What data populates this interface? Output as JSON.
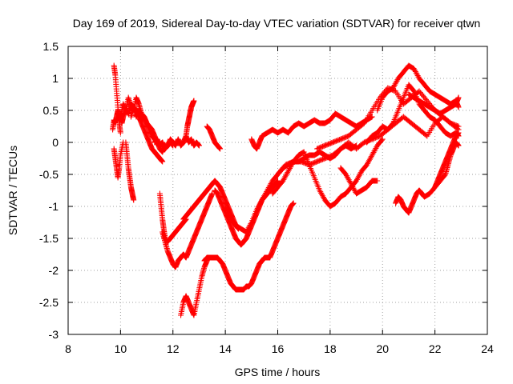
{
  "chart_data": {
    "type": "scatter",
    "title": "Day 169 of 2019, Sidereal Day-to-day VTEC variation (SDTVAR) for receiver qtwn",
    "xlabel": "GPS time / hours",
    "ylabel": "SDTVAR / TECUs",
    "xlim": [
      8,
      24
    ],
    "ylim": [
      -3,
      1.5
    ],
    "xticks": [
      "8",
      "10",
      "12",
      "14",
      "16",
      "18",
      "20",
      "22",
      "24"
    ],
    "yticks": [
      "1.5",
      "1",
      "0.5",
      "0",
      "-0.5",
      "-1",
      "-1.5",
      "-2",
      "-2.5",
      "-3"
    ],
    "grid": true,
    "marker": "plus",
    "color": "#ff0000",
    "series": [
      {
        "x": [
          9.75,
          9.8,
          9.85,
          9.9,
          9.95,
          10.0
        ],
        "y": [
          1.2,
          1.05,
          0.8,
          0.55,
          0.3,
          0.15
        ]
      },
      {
        "x": [
          9.7,
          9.75,
          9.8,
          9.85,
          9.9,
          9.95,
          10.0,
          10.05,
          10.1,
          10.2,
          10.3,
          10.4,
          10.5,
          10.6,
          10.7,
          10.8,
          10.9,
          11.0,
          11.1,
          11.2,
          11.3,
          11.4,
          11.5,
          11.6,
          11.7
        ],
        "y": [
          0.2,
          0.35,
          0.3,
          0.4,
          0.5,
          0.35,
          0.45,
          0.3,
          0.4,
          0.5,
          0.45,
          0.6,
          0.55,
          0.4,
          0.5,
          0.35,
          0.4,
          0.3,
          0.25,
          0.2,
          0.1,
          0.0,
          -0.1,
          -0.15,
          -0.05
        ]
      },
      {
        "x": [
          9.75,
          9.8,
          9.85,
          9.9,
          9.95,
          10.0,
          10.1
        ],
        "y": [
          -0.1,
          -0.25,
          -0.4,
          -0.55,
          -0.4,
          -0.2,
          0.0
        ]
      },
      {
        "x": [
          10.0,
          10.1,
          10.2,
          10.3,
          10.4,
          10.5,
          10.6,
          10.7,
          10.8,
          10.9,
          11.0,
          11.1,
          11.2,
          11.3,
          11.4,
          11.5,
          11.6,
          11.7,
          11.8,
          11.9,
          12.0
        ],
        "y": [
          0.4,
          0.6,
          0.5,
          0.7,
          0.55,
          0.5,
          0.7,
          0.6,
          0.45,
          0.4,
          0.3,
          0.2,
          0.1,
          0.05,
          0.0,
          -0.05,
          0.0,
          -0.1,
          -0.05,
          0.0,
          -0.05
        ]
      },
      {
        "x": [
          10.2,
          10.25,
          10.3,
          10.35,
          10.4,
          10.45,
          10.5
        ],
        "y": [
          0.0,
          -0.2,
          -0.4,
          -0.55,
          -0.7,
          -0.8,
          -0.9
        ]
      },
      {
        "x": [
          10.4,
          10.5,
          10.6,
          10.7,
          10.8,
          10.9,
          11.0,
          11.1,
          11.2,
          11.3,
          11.4,
          11.5,
          11.6
        ],
        "y": [
          0.4,
          0.55,
          0.5,
          0.4,
          0.3,
          0.2,
          0.1,
          0.0,
          -0.1,
          -0.15,
          -0.2,
          -0.25,
          -0.3
        ]
      },
      {
        "x": [
          11.3,
          11.4,
          11.5,
          11.6,
          11.7,
          11.8,
          11.9,
          12.0,
          12.1,
          12.2,
          12.3,
          12.4,
          12.5,
          12.6,
          12.7,
          12.8,
          12.9,
          13.0
        ],
        "y": [
          0.0,
          0.05,
          -0.05,
          0.0,
          -0.1,
          -0.05,
          0.05,
          0.0,
          -0.05,
          0.05,
          -0.05,
          0.0,
          0.1,
          0.0,
          0.05,
          -0.05,
          0.0,
          -0.05
        ]
      },
      {
        "x": [
          12.5,
          12.55,
          12.6,
          12.65,
          12.7,
          12.75,
          12.8
        ],
        "y": [
          0.1,
          0.25,
          0.35,
          0.45,
          0.55,
          0.6,
          0.65
        ]
      },
      {
        "x": [
          13.3,
          13.4,
          13.5,
          13.6,
          13.7,
          13.8
        ],
        "y": [
          0.25,
          0.2,
          0.1,
          0.0,
          -0.05,
          -0.1
        ]
      },
      {
        "x": [
          11.5,
          11.55,
          11.6,
          11.65,
          11.7,
          11.8,
          11.9,
          12.0,
          12.1,
          12.2,
          12.3,
          12.4,
          12.5
        ],
        "y": [
          -0.8,
          -1.0,
          -1.2,
          -1.35,
          -1.5,
          -1.55,
          -1.5,
          -1.45,
          -1.4,
          -1.35,
          -1.3,
          -1.25,
          -1.2
        ]
      },
      {
        "x": [
          11.6,
          11.7,
          11.8,
          11.9,
          12.0,
          12.1,
          12.2,
          12.3,
          12.4,
          12.5,
          12.6,
          12.7,
          12.8,
          12.9,
          13.0,
          13.1,
          13.2,
          13.3,
          13.4,
          13.5
        ],
        "y": [
          -1.4,
          -1.55,
          -1.7,
          -1.8,
          -1.9,
          -1.95,
          -1.85,
          -1.8,
          -1.75,
          -1.8,
          -1.7,
          -1.6,
          -1.5,
          -1.4,
          -1.3,
          -1.2,
          -1.1,
          -1.0,
          -0.9,
          -0.8
        ]
      },
      {
        "x": [
          12.4,
          12.5,
          12.6,
          12.7,
          12.8,
          12.9,
          13.0,
          13.1,
          13.2,
          13.3,
          13.4,
          13.5,
          13.6,
          13.7,
          13.8,
          13.9,
          14.0,
          14.1,
          14.2,
          14.3,
          14.4,
          14.5
        ],
        "y": [
          -1.2,
          -1.15,
          -1.1,
          -1.05,
          -1.0,
          -0.95,
          -0.9,
          -0.85,
          -0.8,
          -0.75,
          -0.7,
          -0.65,
          -0.6,
          -0.65,
          -0.7,
          -0.8,
          -0.9,
          -1.0,
          -1.1,
          -1.2,
          -1.3,
          -1.35
        ]
      },
      {
        "x": [
          12.3,
          12.4,
          12.5,
          12.6,
          12.7,
          12.8,
          12.9,
          13.0,
          13.1,
          13.2,
          13.3
        ],
        "y": [
          -2.7,
          -2.5,
          -2.4,
          -2.5,
          -2.6,
          -2.7,
          -2.5,
          -2.3,
          -2.1,
          -1.95,
          -1.85
        ]
      },
      {
        "x": [
          13.2,
          13.3,
          13.4,
          13.5,
          13.6,
          13.7,
          13.8,
          13.9,
          14.0,
          14.1,
          14.2,
          14.3,
          14.4,
          14.5,
          14.6,
          14.7,
          14.8,
          14.9,
          15.0,
          15.1,
          15.2,
          15.3,
          15.4,
          15.5,
          15.6,
          15.7,
          15.8,
          15.9,
          16.0,
          16.1,
          16.2,
          16.3,
          16.4,
          16.5,
          16.6
        ],
        "y": [
          -1.85,
          -1.8,
          -1.8,
          -1.8,
          -1.8,
          -1.8,
          -1.85,
          -1.9,
          -2.0,
          -2.1,
          -2.2,
          -2.25,
          -2.3,
          -2.3,
          -2.3,
          -2.3,
          -2.25,
          -2.25,
          -2.2,
          -2.1,
          -2.0,
          -1.9,
          -1.85,
          -1.8,
          -1.8,
          -1.8,
          -1.7,
          -1.6,
          -1.5,
          -1.4,
          -1.3,
          -1.2,
          -1.1,
          -1.0,
          -0.95
        ]
      },
      {
        "x": [
          13.6,
          13.7,
          13.8,
          13.9,
          14.0,
          14.1,
          14.2,
          14.3,
          14.4,
          14.5,
          14.6,
          14.7,
          14.8,
          14.9,
          15.0,
          15.1,
          15.2,
          15.3,
          15.4,
          15.5,
          15.6,
          15.7,
          15.8,
          15.9,
          16.0
        ],
        "y": [
          -0.75,
          -0.8,
          -0.9,
          -1.0,
          -1.1,
          -1.2,
          -1.3,
          -1.4,
          -1.5,
          -1.55,
          -1.6,
          -1.55,
          -1.5,
          -1.4,
          -1.3,
          -1.2,
          -1.1,
          -1.0,
          -0.9,
          -0.85,
          -0.8,
          -0.75,
          -0.7,
          -0.65,
          -0.6
        ]
      },
      {
        "x": [
          14.0,
          14.2,
          14.4,
          14.6,
          14.8,
          15.0,
          15.2,
          15.4,
          15.6,
          15.8,
          16.0,
          16.2,
          16.4,
          16.6,
          16.8,
          17.0,
          17.2,
          17.4,
          17.6,
          17.8,
          18.0,
          18.2,
          18.4,
          18.6,
          18.8,
          19.0
        ],
        "y": [
          -1.0,
          -1.2,
          -1.3,
          -1.35,
          -1.4,
          -1.25,
          -1.05,
          -0.9,
          -0.75,
          -0.6,
          -0.5,
          -0.4,
          -0.35,
          -0.3,
          -0.3,
          -0.25,
          -0.2,
          -0.2,
          -0.15,
          -0.2,
          -0.25,
          -0.2,
          -0.1,
          -0.05,
          -0.1,
          -0.05
        ]
      },
      {
        "x": [
          15.0,
          15.1,
          15.2,
          15.3,
          15.4,
          15.6,
          15.8,
          16.0,
          16.2,
          16.4,
          16.6,
          16.8,
          17.0,
          17.2,
          17.4,
          17.6,
          17.8,
          18.0,
          18.2,
          18.4,
          18.6,
          18.8,
          19.0,
          19.2,
          19.4,
          19.6
        ],
        "y": [
          0.05,
          -0.05,
          -0.1,
          0.0,
          0.1,
          0.15,
          0.2,
          0.15,
          0.2,
          0.15,
          0.25,
          0.3,
          0.25,
          0.3,
          0.35,
          0.3,
          0.3,
          0.35,
          0.45,
          0.4,
          0.35,
          0.3,
          0.25,
          0.3,
          0.35,
          0.4
        ]
      },
      {
        "x": [
          15.8,
          16.0,
          16.2,
          16.4,
          16.6,
          16.8,
          17.0,
          17.2,
          17.4,
          17.6,
          17.8,
          18.0,
          18.2,
          18.4,
          18.6,
          18.8,
          19.0,
          19.2,
          19.4,
          19.6,
          19.8,
          20.0
        ],
        "y": [
          -0.8,
          -0.7,
          -0.6,
          -0.45,
          -0.3,
          -0.2,
          -0.15,
          -0.35,
          -0.55,
          -0.75,
          -0.9,
          -1.0,
          -0.95,
          -0.85,
          -0.8,
          -0.7,
          -0.6,
          -0.45,
          -0.35,
          -0.2,
          -0.05,
          0.05
        ]
      },
      {
        "x": [
          16.0,
          16.3,
          16.6,
          16.9,
          17.2,
          17.5,
          17.8,
          18.1,
          18.4,
          18.7,
          19.0,
          19.3,
          19.6,
          19.9,
          20.2,
          20.5,
          20.8,
          21.1,
          21.4,
          21.7,
          22.0,
          22.3,
          22.6,
          22.9
        ],
        "y": [
          -0.5,
          -0.35,
          -0.3,
          -0.3,
          -0.35,
          -0.3,
          -0.25,
          -0.2,
          -0.1,
          0.0,
          -0.1,
          0.0,
          0.05,
          0.1,
          0.2,
          0.3,
          0.4,
          0.3,
          0.2,
          0.1,
          0.3,
          0.4,
          0.3,
          0.2
        ]
      },
      {
        "x": [
          17.5,
          17.8,
          18.1,
          18.4,
          18.7,
          19.0,
          19.3,
          19.6,
          19.9,
          20.2,
          20.5,
          20.8,
          21.1,
          21.4,
          21.7,
          22.0,
          22.3,
          22.6,
          22.9
        ],
        "y": [
          -0.1,
          -0.05,
          0.0,
          0.05,
          0.1,
          0.2,
          0.3,
          0.5,
          0.7,
          0.85,
          0.8,
          0.6,
          0.7,
          0.8,
          0.65,
          0.5,
          0.4,
          0.3,
          0.25
        ]
      },
      {
        "x": [
          18.4,
          18.6,
          18.8,
          19.0,
          19.2,
          19.4,
          19.6,
          19.8
        ],
        "y": [
          -0.4,
          -0.5,
          -0.65,
          -0.8,
          -0.75,
          -0.7,
          -0.6,
          -0.6
        ]
      },
      {
        "x": [
          19.4,
          19.6,
          19.8,
          20.0,
          20.2,
          20.4,
          20.6,
          20.8,
          21.0,
          21.2,
          21.4,
          21.6,
          21.8,
          22.0,
          22.2,
          22.4,
          22.6,
          22.8,
          22.9
        ],
        "y": [
          0.0,
          0.1,
          0.15,
          0.25,
          0.2,
          0.3,
          0.5,
          0.7,
          0.9,
          0.8,
          0.6,
          0.5,
          0.4,
          0.35,
          0.25,
          0.15,
          0.1,
          0.15,
          0.1
        ]
      },
      {
        "x": [
          19.8,
          20.0,
          20.2,
          20.4,
          20.6,
          20.8,
          21.0,
          21.2,
          21.4,
          21.6,
          21.8,
          22.0,
          22.2,
          22.4,
          22.6,
          22.8,
          22.9
        ],
        "y": [
          0.5,
          0.7,
          0.8,
          0.85,
          1.0,
          1.1,
          1.2,
          1.15,
          1.0,
          0.9,
          0.8,
          0.75,
          0.7,
          0.65,
          0.6,
          0.65,
          0.55
        ]
      },
      {
        "x": [
          20.5,
          20.6,
          20.7,
          20.8,
          20.9,
          21.0,
          21.1,
          21.2,
          21.3,
          21.4,
          21.5,
          21.6,
          21.8,
          22.0,
          22.2,
          22.4,
          22.5,
          22.6,
          22.7,
          22.8,
          22.9
        ],
        "y": [
          -0.95,
          -0.85,
          -0.9,
          -1.0,
          -1.05,
          -1.1,
          -1.0,
          -0.9,
          -0.8,
          -0.75,
          -0.8,
          -0.85,
          -0.8,
          -0.7,
          -0.6,
          -0.5,
          -0.35,
          -0.2,
          -0.1,
          0.0,
          -0.05
        ]
      },
      {
        "x": [
          21.0,
          21.2,
          21.4,
          21.6,
          21.8,
          22.0,
          22.2,
          22.4,
          22.6,
          22.8,
          22.9
        ],
        "y": [
          0.75,
          0.7,
          0.65,
          0.6,
          0.55,
          0.5,
          0.45,
          0.5,
          0.55,
          0.6,
          0.7
        ]
      },
      {
        "x": [
          22.0,
          22.1,
          22.2,
          22.3,
          22.4,
          22.5,
          22.6,
          22.7,
          22.8,
          22.9
        ],
        "y": [
          -0.7,
          -0.6,
          -0.5,
          -0.4,
          -0.3,
          -0.2,
          -0.1,
          0.0,
          0.1,
          0.15
        ]
      }
    ]
  }
}
